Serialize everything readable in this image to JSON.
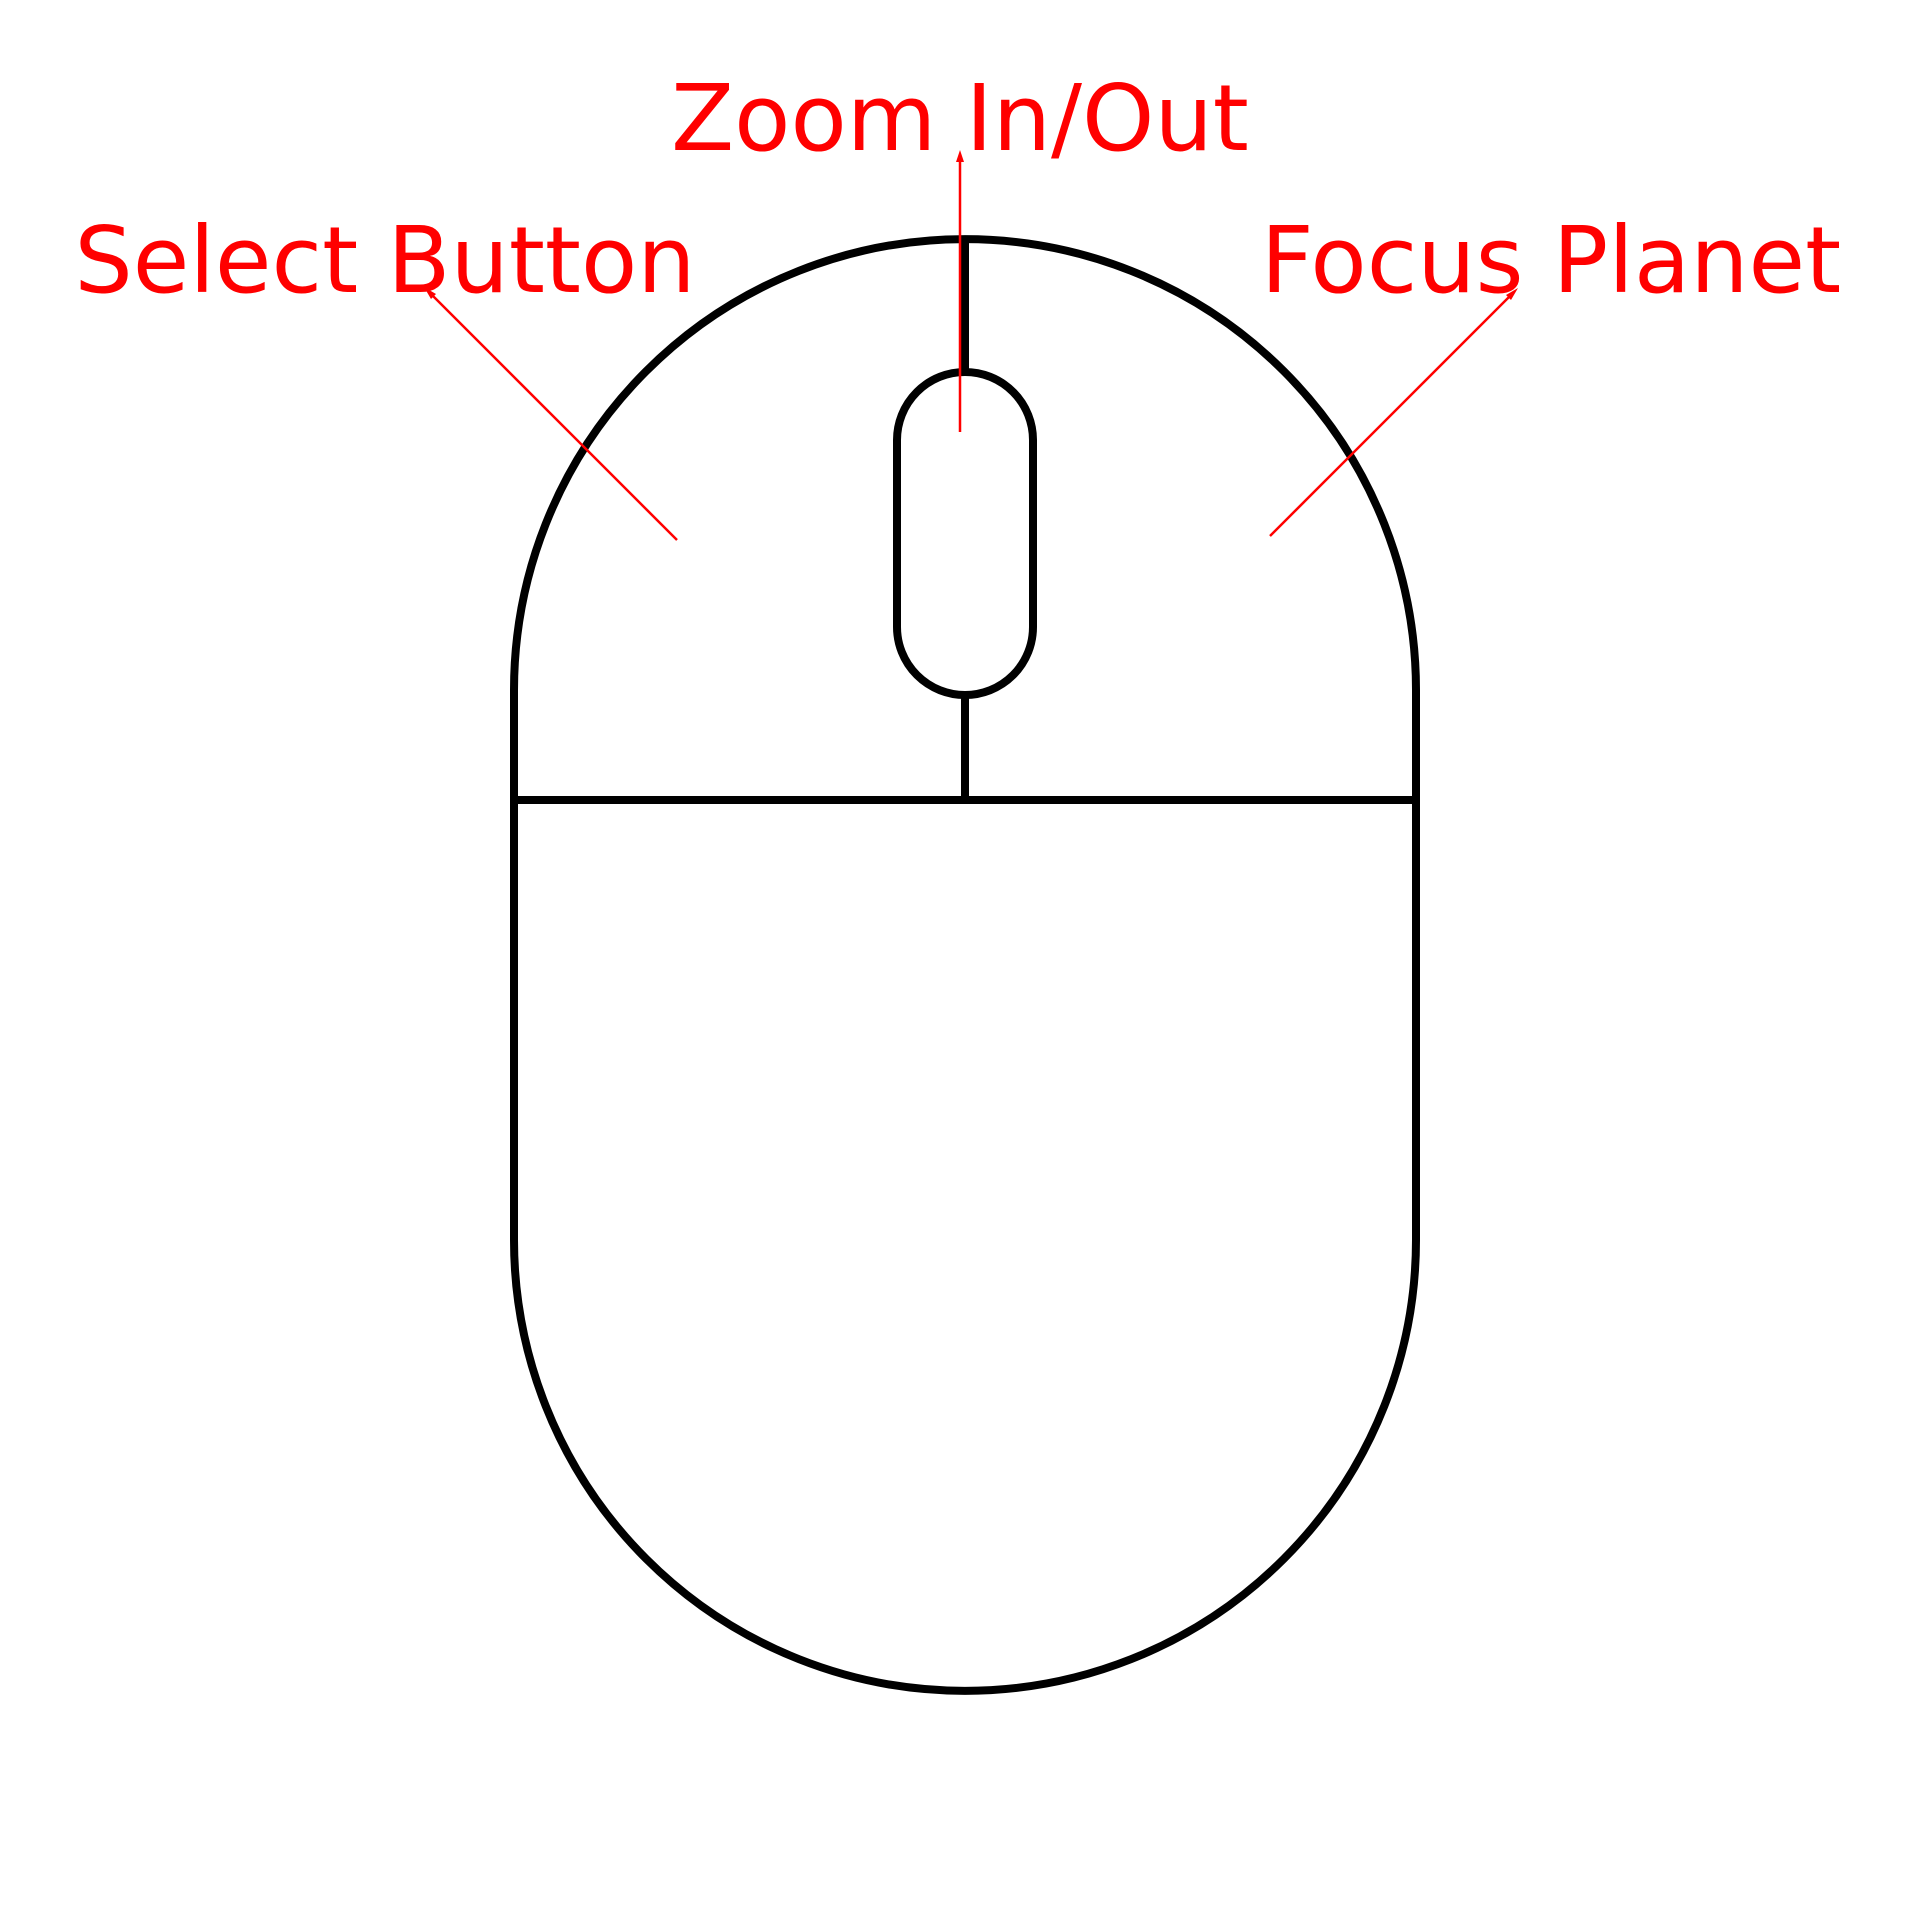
{
  "labels": {
    "zoom": "Zoom In/Out",
    "select": "Select Button",
    "focus": "Focus Planet"
  },
  "colors": {
    "label": "#ff0000",
    "outline": "#000000",
    "background": "#ffffff"
  }
}
